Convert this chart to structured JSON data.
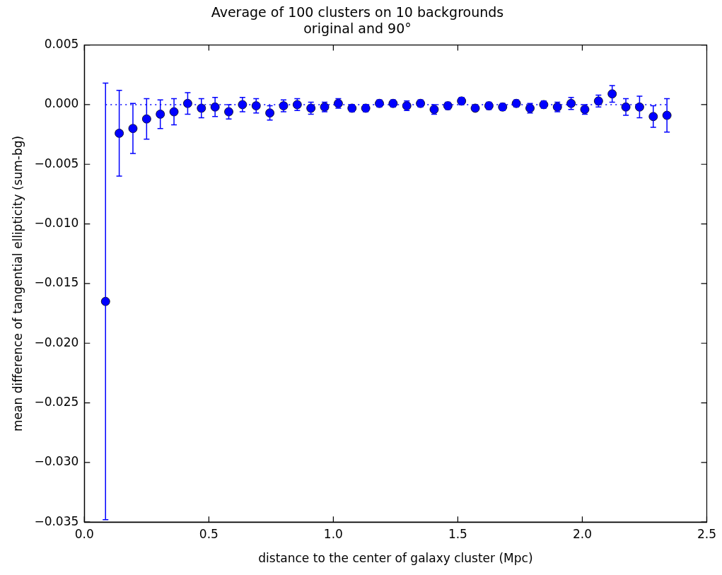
{
  "chart_data": {
    "type": "scatter",
    "title": "Average of 100 clusters on 10 backgrounds\noriginal and 90°",
    "xlabel": "distance to the center of galaxy cluster (Mpc)",
    "ylabel": "mean difference of tangential ellipticity (sum-bg)",
    "xlim": [
      0,
      2.5
    ],
    "ylim": [
      -0.035,
      0.005
    ],
    "xticks": [
      {
        "value": 0,
        "label": "0.0"
      },
      {
        "value": 0.5,
        "label": "0.5"
      },
      {
        "value": 1,
        "label": "1.0"
      },
      {
        "value": 1.5,
        "label": "1.5"
      },
      {
        "value": 2,
        "label": "2.0"
      },
      {
        "value": 2.5,
        "label": "2.5"
      }
    ],
    "yticks": [
      {
        "value": -0.035,
        "label": "−0.035"
      },
      {
        "value": -0.03,
        "label": "−0.030"
      },
      {
        "value": -0.025,
        "label": "−0.025"
      },
      {
        "value": -0.02,
        "label": "−0.020"
      },
      {
        "value": -0.015,
        "label": "−0.015"
      },
      {
        "value": -0.01,
        "label": "−0.010"
      },
      {
        "value": -0.005,
        "label": "−0.005"
      },
      {
        "value": 0,
        "label": "0.000"
      },
      {
        "value": 0.005,
        "label": "0.005"
      }
    ],
    "grid": false,
    "marker": "circle",
    "legend": false,
    "ref_lines": [
      {
        "axis": "y",
        "value": 0,
        "color": "#0000ff",
        "line_style": "dotted"
      }
    ],
    "series": [
      {
        "color": "#0000ff",
        "x": [
          0.085,
          0.14,
          0.195,
          0.25,
          0.305,
          0.36,
          0.415,
          0.47,
          0.525,
          0.58,
          0.635,
          0.69,
          0.745,
          0.8,
          0.855,
          0.91,
          0.965,
          1.02,
          1.075,
          1.13,
          1.185,
          1.24,
          1.295,
          1.35,
          1.405,
          1.46,
          1.515,
          1.57,
          1.625,
          1.68,
          1.735,
          1.79,
          1.845,
          1.9,
          1.955,
          2.01,
          2.065,
          2.12,
          2.175,
          2.23,
          2.285,
          2.34
        ],
        "values": [
          -0.0165,
          -0.0024,
          -0.002,
          -0.0012,
          -0.0008,
          -0.0006,
          0.0001,
          -0.0003,
          -0.0002,
          -0.0006,
          0,
          -0.0001,
          -0.0007,
          -0.0001,
          0,
          -0.0003,
          -0.0002,
          0.0001,
          -0.0003,
          -0.0003,
          0.0001,
          0.0001,
          -0.0001,
          0.0001,
          -0.0004,
          -0.0001,
          0.0003,
          -0.0003,
          -0.0001,
          -0.0002,
          0.0001,
          -0.0003,
          0,
          -0.0002,
          0.0001,
          -0.0004,
          0.0003,
          0.0009,
          -0.0002,
          -0.0002,
          -0.001,
          -0.0009
        ],
        "errors": [
          0.0183,
          0.0036,
          0.0021,
          0.0017,
          0.0012,
          0.0011,
          0.0009,
          0.0008,
          0.0008,
          0.0006,
          0.0006,
          0.0006,
          0.0006,
          0.0005,
          0.0005,
          0.0005,
          0.0004,
          0.0004,
          0.0003,
          0.0003,
          0.0003,
          0.0003,
          0.0004,
          0.0003,
          0.0004,
          0.0003,
          0.0003,
          0.0002,
          0.0003,
          0.0003,
          0.0003,
          0.0004,
          0.0003,
          0.0004,
          0.0005,
          0.0004,
          0.0005,
          0.0007,
          0.0007,
          0.0009,
          0.0009,
          0.0014
        ]
      }
    ]
  }
}
